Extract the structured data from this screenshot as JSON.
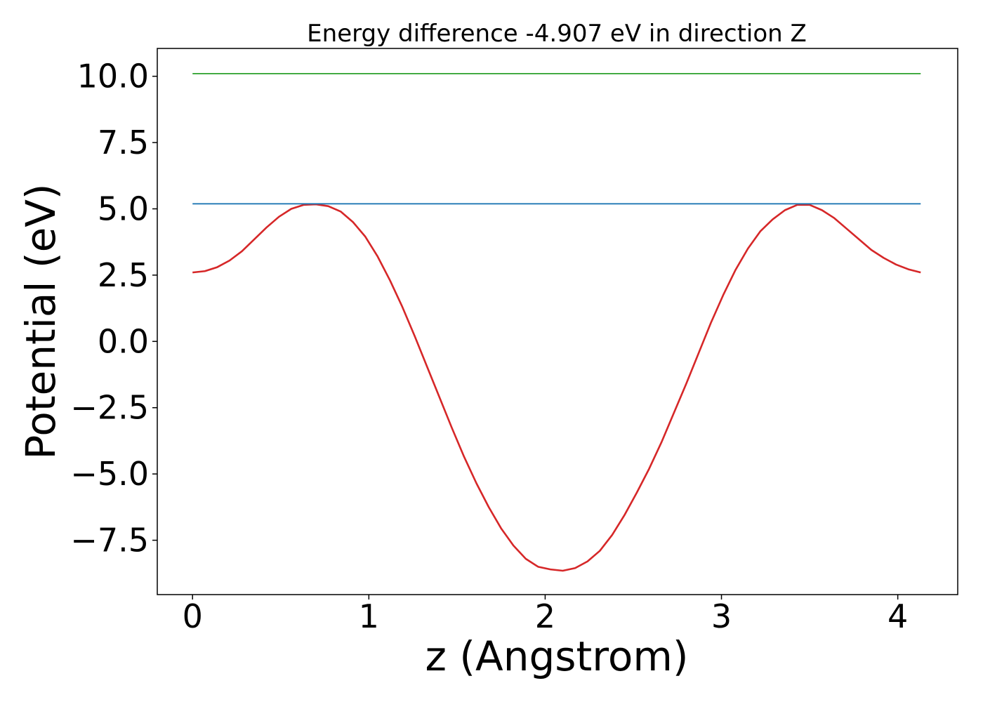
{
  "chart_data": {
    "type": "line",
    "title": "Energy difference -4.907 eV in direction Z",
    "xlabel": "z (Angstrom)",
    "ylabel": "Potential (eV)",
    "xlim": [
      -0.2,
      4.34
    ],
    "ylim": [
      -9.55,
      11.05
    ],
    "x_ticks": [
      0,
      1,
      2,
      3,
      4
    ],
    "x_tick_labels": [
      "0",
      "1",
      "2",
      "3",
      "4"
    ],
    "y_ticks": [
      10.0,
      7.5,
      5.0,
      2.5,
      0.0,
      -2.5,
      -5.0,
      -7.5
    ],
    "y_tick_labels": [
      "10.0",
      "7.5",
      "5.0",
      "2.5",
      "0.0",
      "−2.5",
      "−5.0",
      "−7.5"
    ],
    "grid": false,
    "legend": "none",
    "series": [
      {
        "color": "#d62728",
        "x": [
          0.0,
          0.07,
          0.14,
          0.21,
          0.28,
          0.35,
          0.42,
          0.49,
          0.56,
          0.63,
          0.7,
          0.77,
          0.84,
          0.91,
          0.98,
          1.05,
          1.12,
          1.19,
          1.26,
          1.33,
          1.4,
          1.47,
          1.54,
          1.61,
          1.68,
          1.75,
          1.82,
          1.89,
          1.96,
          2.03,
          2.1,
          2.17,
          2.24,
          2.31,
          2.38,
          2.45,
          2.52,
          2.59,
          2.66,
          2.73,
          2.8,
          2.87,
          2.94,
          3.01,
          3.08,
          3.15,
          3.22,
          3.29,
          3.36,
          3.43,
          3.5,
          3.57,
          3.64,
          3.71,
          3.78,
          3.85,
          3.92,
          3.99,
          4.06,
          4.13
        ],
        "y": [
          2.6,
          2.65,
          2.8,
          3.05,
          3.4,
          3.85,
          4.3,
          4.7,
          5.0,
          5.15,
          5.17,
          5.1,
          4.9,
          4.5,
          3.95,
          3.2,
          2.3,
          1.3,
          0.2,
          -0.95,
          -2.1,
          -3.25,
          -4.35,
          -5.35,
          -6.25,
          -7.05,
          -7.7,
          -8.2,
          -8.5,
          -8.6,
          -8.65,
          -8.55,
          -8.3,
          -7.9,
          -7.3,
          -6.55,
          -5.7,
          -4.8,
          -3.8,
          -2.7,
          -1.6,
          -0.45,
          0.7,
          1.75,
          2.7,
          3.5,
          4.15,
          4.6,
          4.95,
          5.15,
          5.15,
          4.95,
          4.65,
          4.25,
          3.85,
          3.45,
          3.15,
          2.9,
          2.72,
          2.6
        ]
      },
      {
        "color": "#1f77b4",
        "x": [
          0.0,
          4.13
        ],
        "y": [
          5.19,
          5.19
        ]
      },
      {
        "color": "#2ca02c",
        "x": [
          0.0,
          4.13
        ],
        "y": [
          10.1,
          10.1
        ]
      }
    ]
  }
}
